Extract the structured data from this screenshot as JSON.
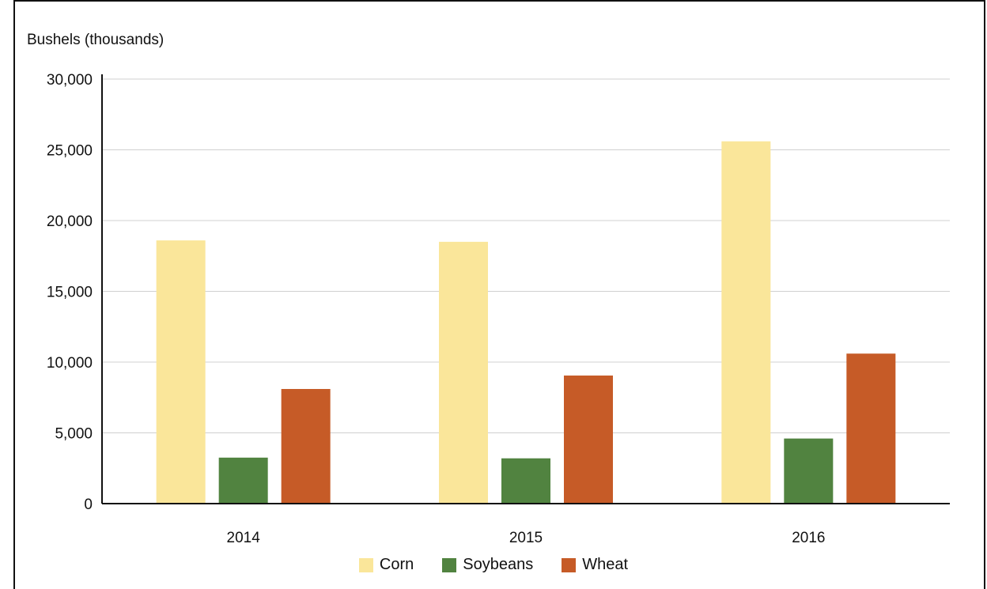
{
  "chart_data": {
    "type": "bar",
    "title": "",
    "ylabel": "Bushels (thousands)",
    "xlabel": "",
    "categories": [
      "2014",
      "2015",
      "2016"
    ],
    "ylim": [
      0,
      30000
    ],
    "yticks": [
      0,
      5000,
      10000,
      15000,
      20000,
      25000,
      30000
    ],
    "ytick_labels": [
      "0",
      "5,000",
      "10,000",
      "15,000",
      "20,000",
      "25,000",
      "30,000"
    ],
    "grid": true,
    "legend_position": "bottom",
    "series": [
      {
        "name": "Corn",
        "color": "#fae69a",
        "values": [
          18600,
          18500,
          25600
        ]
      },
      {
        "name": "Soybeans",
        "color": "#518340",
        "values": [
          3250,
          3200,
          4600
        ]
      },
      {
        "name": "Wheat",
        "color": "#c65b27",
        "values": [
          8100,
          9050,
          10600
        ]
      }
    ]
  }
}
